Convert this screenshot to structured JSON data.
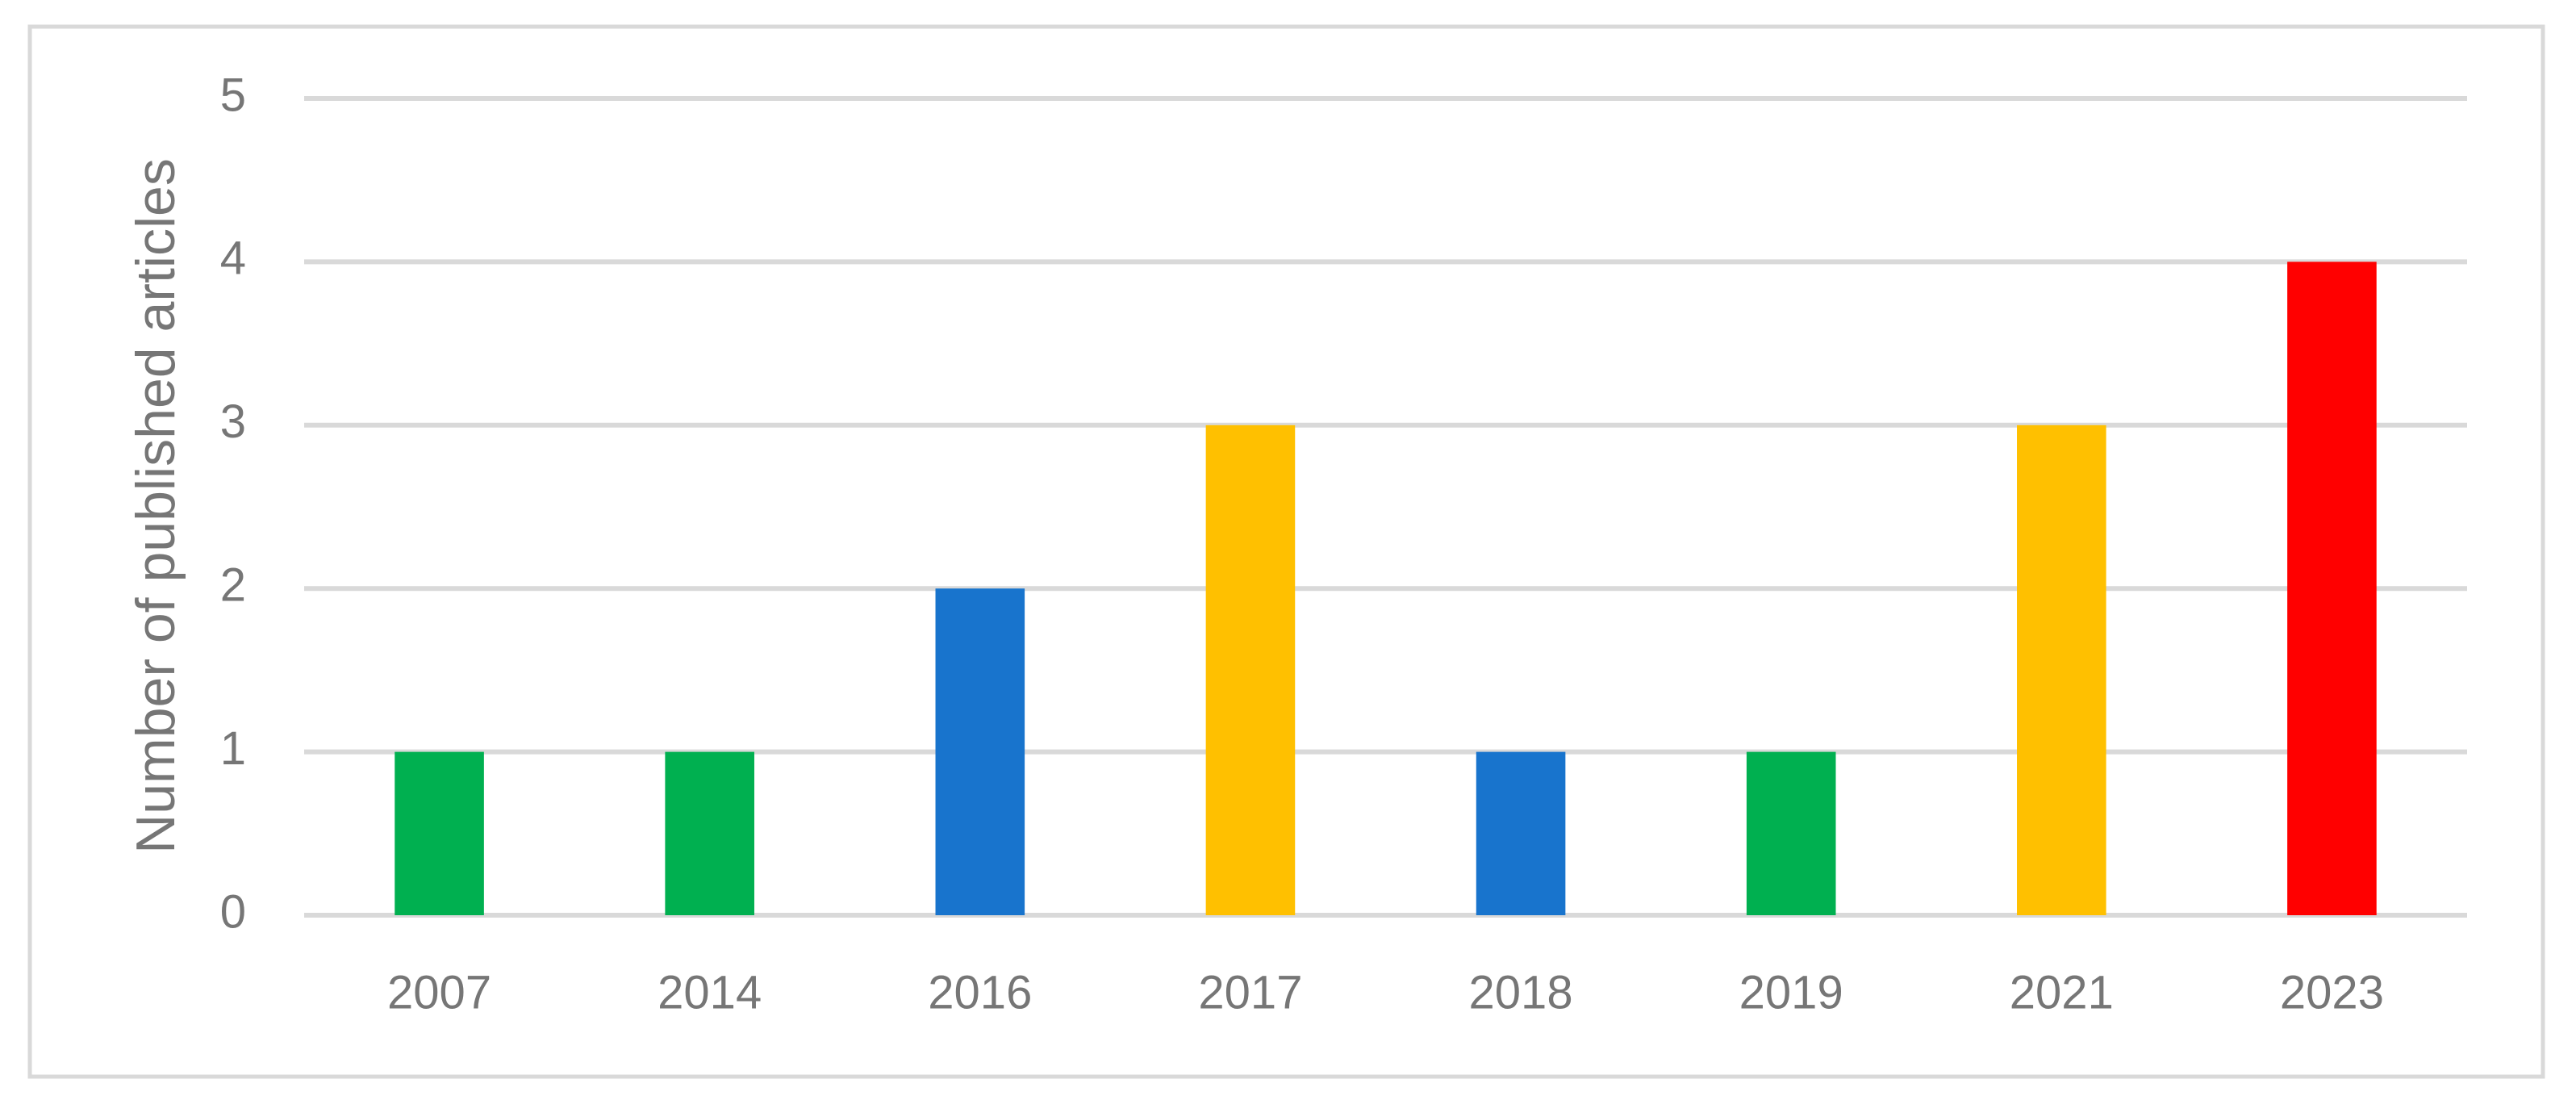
{
  "chart_data": {
    "type": "bar",
    "y_label": "Number of published articles",
    "categories": [
      "2007",
      "2014",
      "2016",
      "2017",
      "2018",
      "2019",
      "2021",
      "2023"
    ],
    "values": [
      1,
      1,
      2,
      3,
      1,
      1,
      3,
      4
    ],
    "colors": [
      "#00b050",
      "#00b050",
      "#1874cd",
      "#ffc000",
      "#1874cd",
      "#00b050",
      "#ffc000",
      "#ff0000"
    ],
    "ylim": [
      0,
      5
    ],
    "yticks": [
      0,
      1,
      2,
      3,
      4,
      5
    ],
    "grid": true
  }
}
